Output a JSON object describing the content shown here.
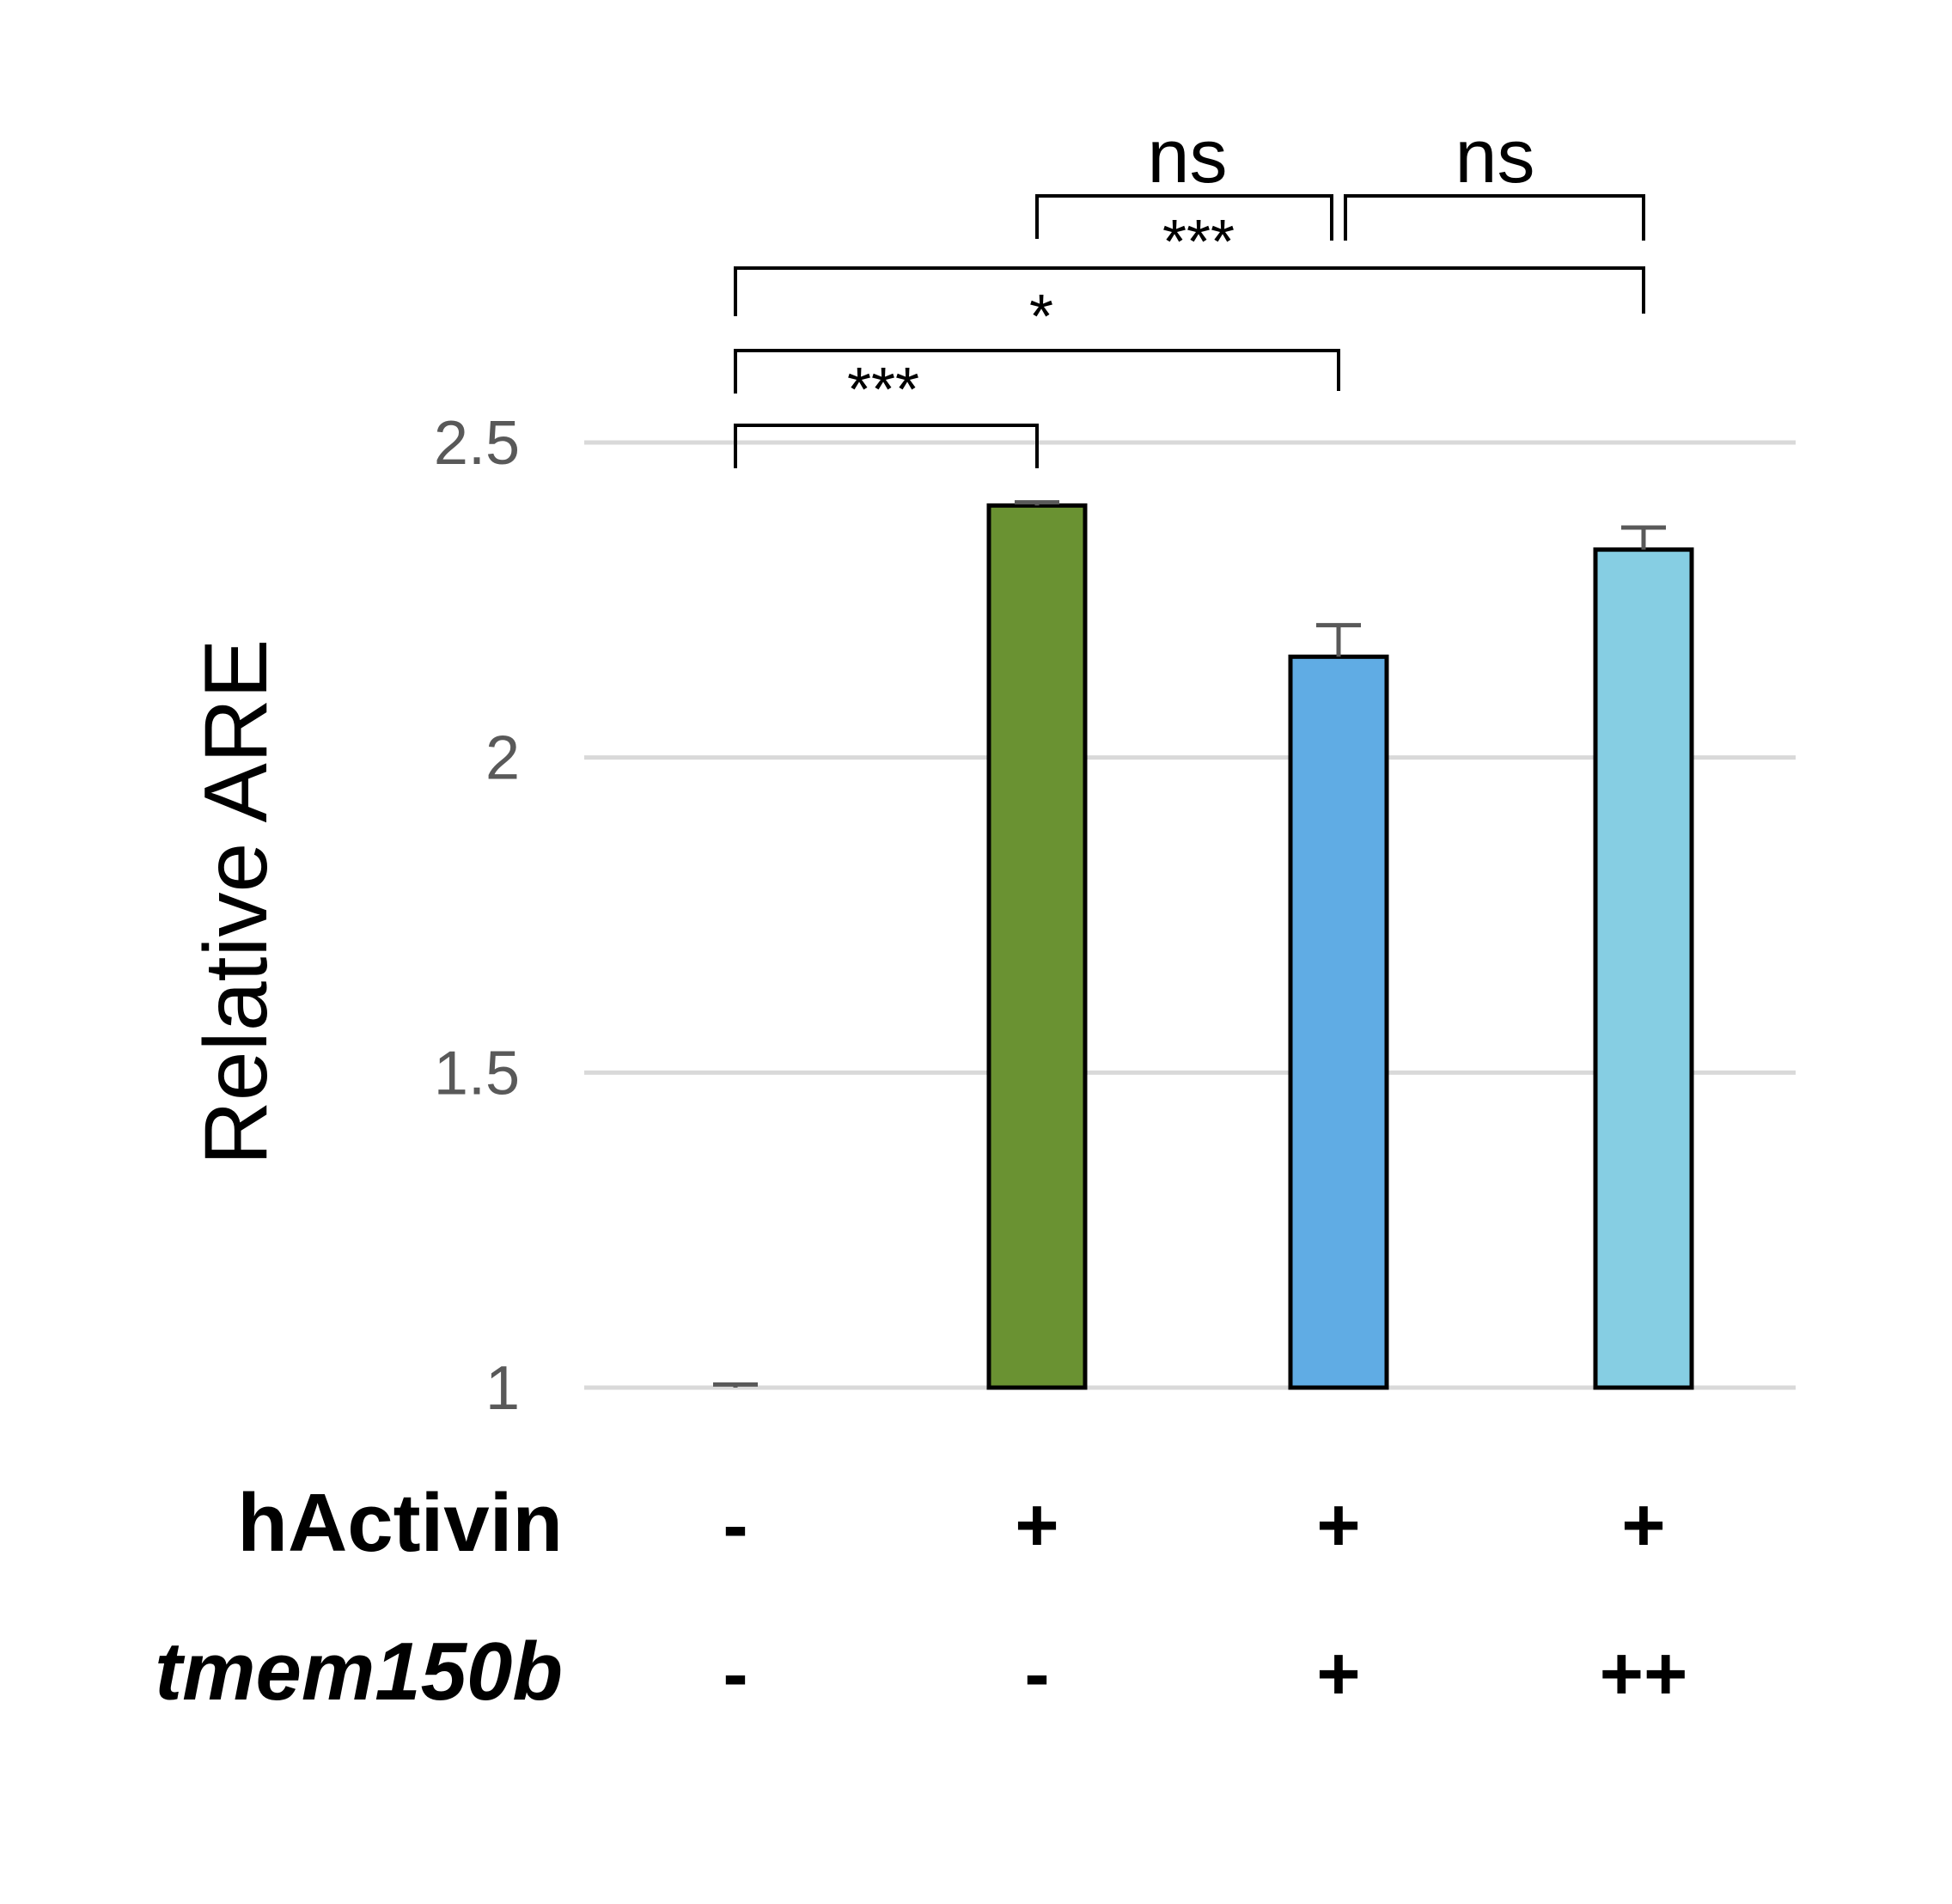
{
  "chart_data": {
    "type": "bar",
    "ylabel": "Relative ARE",
    "ylim": [
      1,
      2.5
    ],
    "yticks": [
      "1",
      "1.5",
      "2",
      "2.5"
    ],
    "grid": true,
    "bars": [
      {
        "value": 1.0,
        "error": 0.005,
        "color": "#ffffff"
      },
      {
        "value": 2.4,
        "error": 0.005,
        "color": "#6a9232"
      },
      {
        "value": 2.16,
        "error": 0.05,
        "color": "#60ace4"
      },
      {
        "value": 2.33,
        "error": 0.035,
        "color": "#86cee3"
      }
    ],
    "conditions": {
      "rows": [
        {
          "label": "hActivin",
          "italic": false,
          "values": [
            "-",
            "+",
            "+",
            "+"
          ]
        },
        {
          "label": "tmem150b",
          "italic": true,
          "values": [
            "-",
            "-",
            "+",
            "++"
          ]
        }
      ]
    },
    "significance": [
      {
        "from": 0,
        "to": 1,
        "label": "***"
      },
      {
        "from": 0,
        "to": 2,
        "label": "*"
      },
      {
        "from": 0,
        "to": 3,
        "label": "***"
      },
      {
        "from": 1,
        "to": 2,
        "label": "ns"
      },
      {
        "from": 2,
        "to": 3,
        "label": "ns"
      }
    ]
  }
}
